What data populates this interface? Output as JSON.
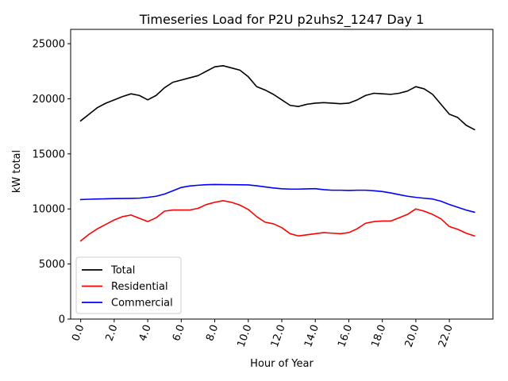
{
  "chart_data": {
    "type": "line",
    "title": "Timeseries Load for P2U p2uhs2_1247  Day 1",
    "xlabel": "Hour of Year",
    "ylabel": "kW total",
    "xlim": [
      -0.6,
      24.6
    ],
    "ylim": [
      0,
      26300
    ],
    "x_ticks": [
      0,
      2,
      4,
      6,
      8,
      10,
      12,
      14,
      16,
      18,
      20,
      22
    ],
    "x_tick_labels": [
      "0.0",
      "2.0",
      "4.0",
      "6.0",
      "8.0",
      "10.0",
      "12.0",
      "14.0",
      "16.0",
      "18.0",
      "20.0",
      "22.0"
    ],
    "y_ticks": [
      0,
      5000,
      10000,
      15000,
      20000,
      25000
    ],
    "y_tick_labels": [
      "0",
      "5000",
      "10000",
      "15000",
      "20000",
      "25000"
    ],
    "legend_position": "lower-left",
    "x": [
      0.0,
      0.5,
      1.0,
      1.5,
      2.0,
      2.5,
      3.0,
      3.5,
      4.0,
      4.5,
      5.0,
      5.5,
      6.0,
      6.5,
      7.0,
      7.5,
      8.0,
      8.5,
      9.0,
      9.5,
      10.0,
      10.5,
      11.0,
      11.5,
      12.0,
      12.5,
      13.0,
      13.5,
      14.0,
      14.5,
      15.0,
      15.5,
      16.0,
      16.5,
      17.0,
      17.5,
      18.0,
      18.5,
      19.0,
      19.5,
      20.0,
      20.5,
      21.0,
      21.5,
      22.0,
      22.5,
      23.0,
      23.5
    ],
    "series": [
      {
        "name": "Total",
        "color": "#000000",
        "values": [
          18000,
          18600,
          19200,
          19600,
          19900,
          20200,
          20450,
          20300,
          19900,
          20300,
          21000,
          21500,
          21700,
          21900,
          22100,
          22500,
          22900,
          23000,
          22800,
          22600,
          22000,
          21100,
          20800,
          20400,
          19900,
          19400,
          19300,
          19500,
          19600,
          19650,
          19600,
          19550,
          19600,
          19900,
          20300,
          20500,
          20450,
          20400,
          20500,
          20700,
          21100,
          20900,
          20400,
          19500,
          18600,
          18300,
          17600,
          17200
        ]
      },
      {
        "name": "Residential",
        "color": "#ff0000",
        "values": [
          7100,
          7700,
          8200,
          8600,
          9000,
          9300,
          9450,
          9150,
          8850,
          9200,
          9800,
          9900,
          9900,
          9900,
          10050,
          10400,
          10600,
          10750,
          10600,
          10350,
          9950,
          9300,
          8800,
          8650,
          8300,
          7750,
          7550,
          7650,
          7750,
          7850,
          7800,
          7750,
          7850,
          8200,
          8700,
          8850,
          8900,
          8900,
          9200,
          9500,
          10000,
          9800,
          9500,
          9100,
          8400,
          8150,
          7800,
          7550
        ]
      },
      {
        "name": "Commercial",
        "color": "#0000ff",
        "values": [
          10850,
          10880,
          10900,
          10920,
          10940,
          10950,
          10960,
          10980,
          11050,
          11150,
          11350,
          11650,
          11950,
          12080,
          12150,
          12200,
          12220,
          12210,
          12200,
          12190,
          12180,
          12100,
          12000,
          11900,
          11830,
          11800,
          11800,
          11820,
          11840,
          11750,
          11700,
          11700,
          11680,
          11700,
          11700,
          11650,
          11580,
          11450,
          11300,
          11150,
          11050,
          10970,
          10900,
          10700,
          10400,
          10150,
          9900,
          9700
        ]
      }
    ]
  }
}
